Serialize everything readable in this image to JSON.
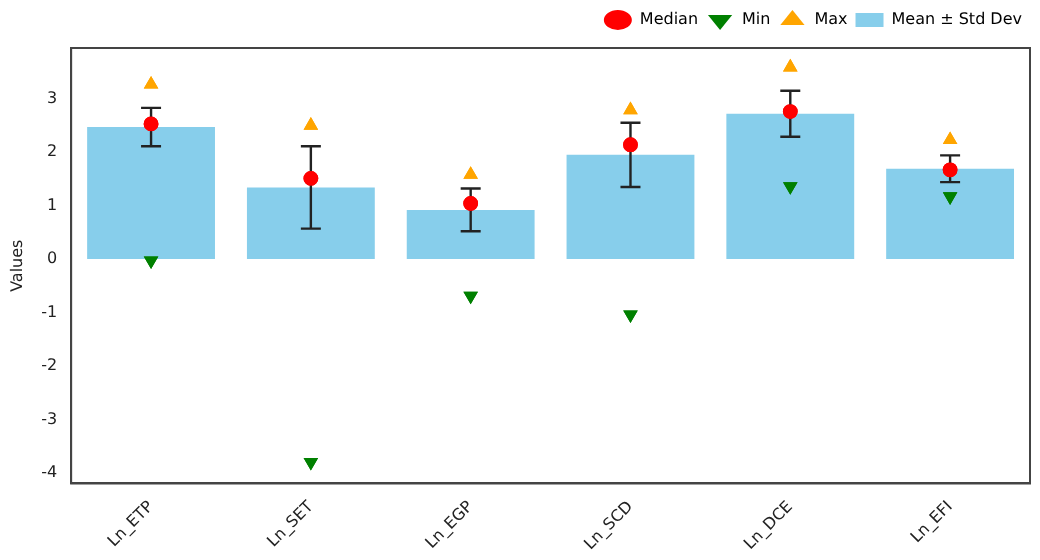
{
  "chart_data": {
    "type": "bar",
    "ylabel": "Values",
    "categories": [
      "Ln_ETP",
      "Ln_SET",
      "Ln_EGP",
      "Ln_SCD",
      "Ln_DCE",
      "Ln_EFI"
    ],
    "series": [
      {
        "name": "Median",
        "type": "scatter",
        "marker": "circle",
        "color": "#ff0000",
        "values": [
          2.53,
          1.51,
          1.04,
          2.14,
          2.76,
          1.67
        ]
      },
      {
        "name": "Min",
        "type": "scatter",
        "marker": "triangle-down",
        "color": "#008000",
        "values": [
          -0.03,
          -3.8,
          -0.69,
          -1.04,
          1.36,
          1.17
        ]
      },
      {
        "name": "Max",
        "type": "scatter",
        "marker": "triangle",
        "color": "#ffa500",
        "values": [
          3.27,
          2.5,
          1.58,
          2.79,
          3.59,
          2.23
        ]
      },
      {
        "name": "Mean ± Std Dev",
        "color": "#87ceeb",
        "values": [
          2.47,
          1.34,
          0.92,
          1.95,
          2.72,
          1.69
        ],
        "errors": [
          0.36,
          0.77,
          0.4,
          0.6,
          0.43,
          0.25
        ]
      }
    ],
    "ylim": [
      -4.2,
      3.95
    ],
    "yticks": [
      -4,
      -3,
      -2,
      -1,
      0,
      1,
      2,
      3
    ],
    "grid": false,
    "legend": "top right"
  }
}
